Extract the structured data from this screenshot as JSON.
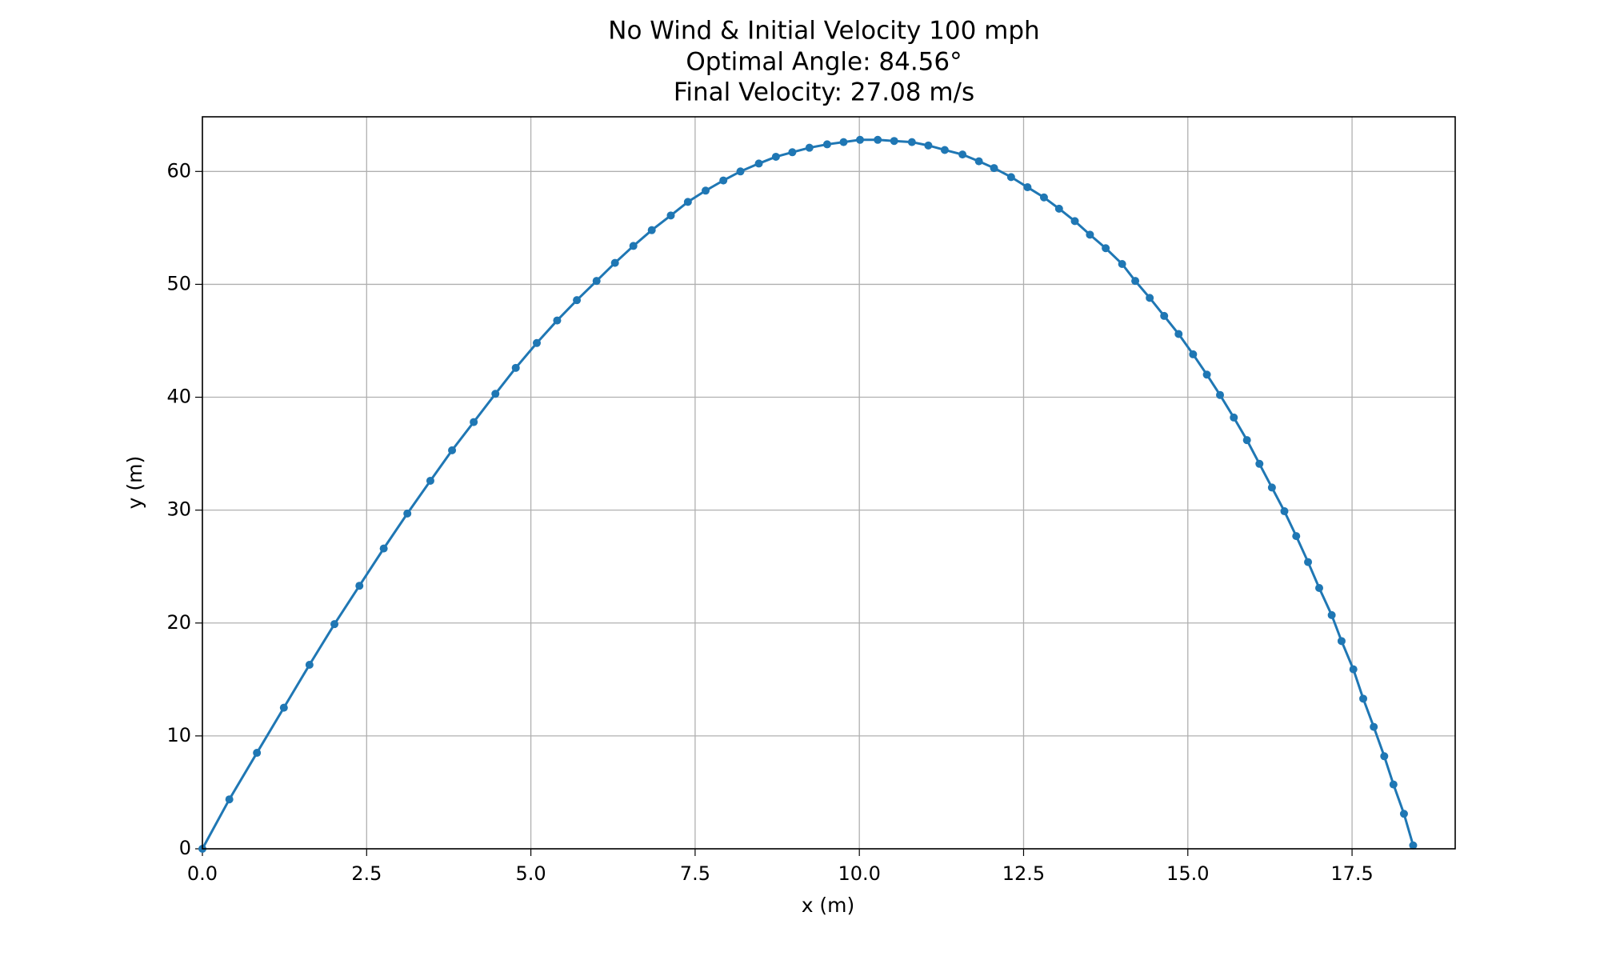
{
  "chart_data": {
    "type": "line",
    "title": [
      "No Wind & Initial Velocity 100 mph",
      "Optimal Angle: 84.56°",
      "Final Velocity: 27.08 m/s"
    ],
    "xlabel": "x (m)",
    "ylabel": "y (m)",
    "xlim": [
      0,
      19.07
    ],
    "ylim": [
      0,
      64.84
    ],
    "xticks": [
      {
        "value": 0,
        "label": "0.0"
      },
      {
        "value": 2.5,
        "label": "2.5"
      },
      {
        "value": 5,
        "label": "5.0"
      },
      {
        "value": 7.5,
        "label": "7.5"
      },
      {
        "value": 10,
        "label": "10.0"
      },
      {
        "value": 12.5,
        "label": "12.5"
      },
      {
        "value": 15,
        "label": "15.0"
      },
      {
        "value": 17.5,
        "label": "17.5"
      }
    ],
    "yticks": [
      0,
      10,
      20,
      30,
      40,
      50,
      60
    ],
    "grid": true,
    "marker": true,
    "x": [
      0,
      0.41,
      0.83,
      1.24,
      1.63,
      2.01,
      2.39,
      2.76,
      3.12,
      3.47,
      3.8,
      4.13,
      4.46,
      4.77,
      5.09,
      5.4,
      5.7,
      6.0,
      6.28,
      6.56,
      6.84,
      7.13,
      7.39,
      7.66,
      7.93,
      8.19,
      8.47,
      8.73,
      8.98,
      9.24,
      9.51,
      9.76,
      10.01,
      10.28,
      10.53,
      10.8,
      11.05,
      11.3,
      11.57,
      11.82,
      12.05,
      12.31,
      12.56,
      12.81,
      13.04,
      13.28,
      13.51,
      13.75,
      14.0,
      14.2,
      14.42,
      14.64,
      14.86,
      15.08,
      15.29,
      15.49,
      15.7,
      15.9,
      16.09,
      16.28,
      16.47,
      16.65,
      16.83,
      17.0,
      17.19,
      17.34,
      17.52,
      17.67,
      17.83,
      17.99,
      18.13,
      18.29,
      18.43
    ],
    "series": [
      {
        "color": "#1f77b4",
        "values": [
          0,
          4.38,
          8.5,
          12.5,
          16.3,
          19.9,
          23.3,
          26.6,
          29.7,
          32.6,
          35.3,
          37.8,
          40.3,
          42.6,
          44.8,
          46.8,
          48.6,
          50.3,
          51.9,
          53.4,
          54.8,
          56.1,
          57.3,
          58.3,
          59.2,
          60.0,
          60.7,
          61.3,
          61.7,
          62.1,
          62.4,
          62.6,
          62.8,
          62.8,
          62.7,
          62.6,
          62.3,
          61.9,
          61.5,
          60.9,
          60.3,
          59.5,
          58.6,
          57.7,
          56.7,
          55.6,
          54.4,
          53.2,
          51.8,
          50.3,
          48.8,
          47.2,
          45.6,
          43.8,
          42.0,
          40.2,
          38.2,
          36.2,
          34.1,
          32.0,
          29.9,
          27.7,
          25.4,
          23.1,
          20.7,
          18.4,
          15.9,
          13.3,
          10.8,
          8.2,
          5.7,
          3.1,
          0.3
        ]
      }
    ]
  }
}
